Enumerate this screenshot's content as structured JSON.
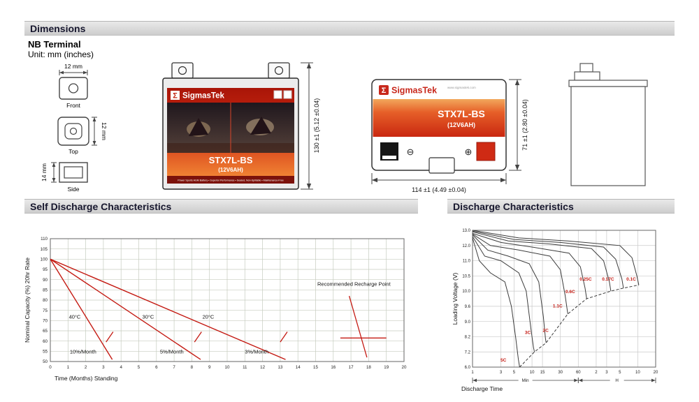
{
  "sections": {
    "dimensions": "Dimensions",
    "self_discharge": "Self Discharge Characteristics",
    "discharge": "Discharge Characteristics"
  },
  "terminal": {
    "heading": "NB Terminal",
    "unit": "Unit: mm (inches)",
    "front": {
      "label": "Front",
      "dim": "12 mm"
    },
    "top": {
      "label": "Top",
      "dim": "12 mm"
    },
    "side": {
      "label": "Side",
      "dim": "14 mm"
    }
  },
  "battery": {
    "brand": "SigmasTek",
    "brand_symbol": "Σ",
    "model": "STX7L-BS",
    "capacity": "(12V6AH)",
    "website": "www.sigmastek.com",
    "tagline": "Power Sports AGM Battery • Superior Performance • Sealed, Non-Spillable • Maintenance-Free",
    "neg_symbol": "⊖",
    "pos_symbol": "⊕",
    "dims": {
      "height": "130 ±1 (5.12 ±0.04)",
      "width": "114 ±1 (4.49 ±0.04)",
      "depth": "71 ±1 (2.80 ±0.04)"
    }
  },
  "chart_data": [
    {
      "type": "line",
      "title": "Self Discharge Characteristics",
      "xlabel": "Time (Months) Standing",
      "ylabel": "Nominal Capacity (%) 20hr Rate",
      "xlim": [
        0,
        20
      ],
      "xtick_step": 1,
      "ylim": [
        50,
        110
      ],
      "ytick_step": 5,
      "grid": true,
      "grid_color": "#c6ccbf",
      "line_color": "#c41a12",
      "series": [
        {
          "name": "40°C",
          "points": [
            [
              0,
              100
            ],
            [
              3.5,
              51
            ]
          ],
          "label_xy": [
            1.05,
            71
          ],
          "rate": "10%/Month",
          "rate_xy": [
            1.1,
            54
          ]
        },
        {
          "name": "30°C",
          "points": [
            [
              0,
              100
            ],
            [
              8.5,
              51
            ]
          ],
          "label_xy": [
            5.2,
            71
          ],
          "rate": "5%/Month",
          "rate_xy": [
            6.2,
            54
          ]
        },
        {
          "name": "20°C",
          "points": [
            [
              0,
              100
            ],
            [
              13.3,
              51
            ]
          ],
          "label_xy": [
            8.6,
            71
          ],
          "rate": "3%/Month",
          "rate_xy": [
            11.0,
            54
          ]
        }
      ],
      "annotations": {
        "recharge_text": "Recommended Recharge Point",
        "recharge_text_xy": [
          15.1,
          87
        ],
        "segments": [
          [
            [
              16.9,
              82
            ],
            [
              17.9,
              52
            ]
          ],
          [
            [
              16.4,
              61.5
            ],
            [
              19.0,
              61.5
            ]
          ],
          [
            [
              3.15,
              59.5
            ],
            [
              3.55,
              64.5
            ]
          ],
          [
            [
              8.15,
              59.5
            ],
            [
              8.55,
              64.5
            ]
          ],
          [
            [
              13.0,
              59.5
            ],
            [
              13.4,
              64.5
            ]
          ]
        ]
      }
    },
    {
      "type": "line",
      "title": "Discharge Characteristics",
      "xlabel": "Discharge Time",
      "ylabel": "Loading Voltage (V)",
      "x_scale": "log-minutes",
      "xticks_min": [
        1,
        3,
        5,
        10,
        15,
        30,
        60
      ],
      "xticks_h": [
        2,
        3,
        5,
        10,
        20
      ],
      "x_min_label": "Min",
      "x_h_label": "H",
      "yticks": [
        13.0,
        12.0,
        11.0,
        10.5,
        10.0,
        9.6,
        9.0,
        8.2,
        7.2,
        6.0
      ],
      "grid_color": "#c9c9c9",
      "curve_color": "#3c3c3c",
      "label_color": "#c41a12",
      "series": [
        {
          "name": "5C",
          "label_min": 3.3,
          "label_v": 6.45,
          "points": [
            [
              1,
              12.5
            ],
            [
              1.3,
              11.0
            ],
            [
              2,
              10.6
            ],
            [
              3.5,
              10.3
            ],
            [
              4.5,
              9.6
            ],
            [
              5.3,
              8.2
            ],
            [
              5.9,
              6.6
            ],
            [
              6.2,
              6.0
            ]
          ]
        },
        {
          "name": "3C",
          "label_min": 8.5,
          "label_v": 8.35,
          "points": [
            [
              1,
              12.6
            ],
            [
              1.6,
              11.3
            ],
            [
              3,
              11.0
            ],
            [
              6,
              10.6
            ],
            [
              8,
              10.0
            ],
            [
              9.6,
              8.6
            ],
            [
              10.6,
              7.5
            ],
            [
              11,
              7.2
            ]
          ]
        },
        {
          "name": "2C",
          "label_min": 17,
          "label_v": 8.45,
          "points": [
            [
              1,
              12.7
            ],
            [
              1.8,
              11.7
            ],
            [
              4,
              11.3
            ],
            [
              9,
              10.9
            ],
            [
              13,
              10.3
            ],
            [
              15.5,
              9.2
            ],
            [
              16.8,
              8.1
            ],
            [
              17.3,
              7.8
            ]
          ]
        },
        {
          "name": "1.1C",
          "label_min": 27,
          "label_v": 9.55,
          "points": [
            [
              1,
              12.75
            ],
            [
              2,
              12.0
            ],
            [
              6,
              11.7
            ],
            [
              20,
              11.3
            ],
            [
              30,
              10.7
            ],
            [
              36,
              9.9
            ],
            [
              40,
              9.3
            ]
          ]
        },
        {
          "name": "0.6C",
          "label_min": 44,
          "label_v": 9.95,
          "points": [
            [
              1,
              12.8
            ],
            [
              3,
              12.2
            ],
            [
              10,
              11.9
            ],
            [
              42,
              11.5
            ],
            [
              65,
              10.8
            ],
            [
              78,
              10.1
            ],
            [
              83,
              9.8
            ]
          ]
        },
        {
          "name": "0.25C",
          "label_min": 80,
          "label_v": 10.35,
          "points": [
            [
              1,
              12.9
            ],
            [
              4,
              12.3
            ],
            [
              20,
              12.1
            ],
            [
              100,
              11.8
            ],
            [
              160,
              11.0
            ],
            [
              200,
              10.3
            ],
            [
              212,
              10.0
            ]
          ]
        },
        {
          "name": "0.17C",
          "label_min": 190,
          "label_v": 10.35,
          "points": [
            [
              1,
              12.95
            ],
            [
              5,
              12.4
            ],
            [
              30,
              12.2
            ],
            [
              160,
              11.9
            ],
            [
              255,
              11.1
            ],
            [
              325,
              10.4
            ],
            [
              345,
              10.1
            ]
          ]
        },
        {
          "name": "0.1C",
          "label_min": 465,
          "label_v": 10.35,
          "points": [
            [
              1,
              13.0
            ],
            [
              6,
              12.5
            ],
            [
              40,
              12.3
            ],
            [
              300,
              12.0
            ],
            [
              480,
              11.2
            ],
            [
              580,
              10.5
            ],
            [
              625,
              10.2
            ]
          ]
        }
      ],
      "guide_dashed": [
        [
          6.2,
          6.0
        ],
        [
          11,
          7.2
        ],
        [
          17.3,
          7.8
        ],
        [
          40,
          9.3
        ],
        [
          83,
          9.8
        ],
        [
          212,
          10.0
        ],
        [
          345,
          10.1
        ],
        [
          625,
          10.2
        ]
      ]
    }
  ]
}
